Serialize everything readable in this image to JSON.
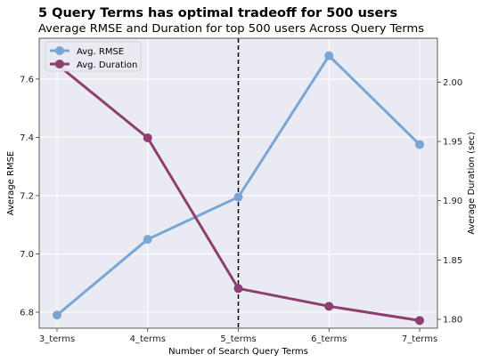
{
  "chart_data": {
    "type": "line",
    "suptitle": "5 Query Terms has optimal tradeoff for 500 users",
    "title": "Average RMSE and Duration for top 500 users Across Query Terms",
    "xlabel": "Number of Search Query Terms",
    "ylabel_left": "Average RMSE",
    "ylabel_right": "Average Duration (sec)",
    "categories": [
      "3_terms",
      "4_terms",
      "5_terms",
      "6_terms",
      "7_terms"
    ],
    "ylim_left": [
      6.745,
      7.74
    ],
    "ylim_right": [
      1.7925,
      2.037
    ],
    "yticks_left": [
      "6.8",
      "7.0",
      "7.2",
      "7.4",
      "7.6"
    ],
    "yticks_right": [
      "1.80",
      "1.85",
      "1.90",
      "1.95",
      "2.00"
    ],
    "grid": true,
    "legend_position": "upper-left",
    "vline_category": "5_terms",
    "series": [
      {
        "name": "Avg. RMSE",
        "axis": "left",
        "color": "#7aa6d4",
        "values": [
          6.79,
          7.05,
          7.195,
          7.68,
          7.375
        ]
      },
      {
        "name": "Avg. Duration",
        "axis": "right",
        "color": "#8e3f6e",
        "values": [
          2.015,
          1.953,
          1.826,
          1.811,
          1.799
        ]
      }
    ]
  }
}
